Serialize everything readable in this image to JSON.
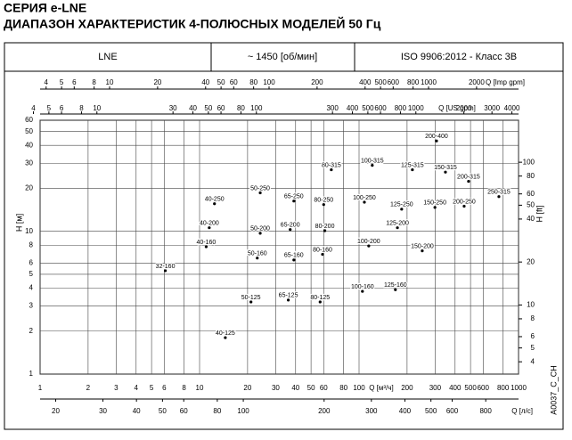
{
  "header": {
    "series": "СЕРИЯ e-LNE",
    "title": "ДИАПАЗОН ХАРАКТЕРИСТИК 4-ПОЛЮСНЫХ МОДЕЛЕЙ 50 Гц",
    "cells": [
      "LNE",
      "~ 1450 [об/мин]",
      "ISO 9906:2012 - Класс 3В"
    ]
  },
  "chart_data": {
    "type": "pump-range",
    "xlabel": "Q [м³/ч]",
    "ylabel": "H [м]",
    "y2label": "H [ft]",
    "code": "A0037_C_CH",
    "log_scale": true,
    "grid": true,
    "xlim": [
      1,
      1000
    ],
    "xticks": [
      1,
      2,
      3,
      4,
      5,
      6,
      8,
      10,
      20,
      30,
      40,
      50,
      60,
      80,
      100,
      200,
      300,
      400,
      500,
      600,
      800,
      1000
    ],
    "ylim": [
      1,
      60
    ],
    "yticks": [
      1,
      2,
      3,
      4,
      5,
      6,
      8,
      10,
      20,
      30,
      40,
      50,
      60
    ],
    "y2lim": [
      3.28,
      196.85
    ],
    "y2ticks": [
      4,
      5,
      6,
      8,
      10,
      20,
      40,
      50,
      60,
      80,
      100
    ],
    "extra_x_axes": [
      {
        "label": "Q [Imp gpm]",
        "position": "top",
        "lim": [
          3.666,
          3666
        ],
        "ticks": [
          4,
          5,
          6,
          8,
          10,
          20,
          40,
          50,
          60,
          80,
          100,
          200,
          400,
          500,
          600,
          800,
          1000,
          2000
        ]
      },
      {
        "label": "Q [US gpm]",
        "position": "top",
        "lim": [
          4.403,
          4403
        ],
        "ticks": [
          4,
          5,
          6,
          8,
          10,
          30,
          40,
          50,
          60,
          80,
          100,
          300,
          400,
          500,
          600,
          800,
          1000,
          2000,
          3000,
          4000
        ]
      },
      {
        "label": "Q [л/с]",
        "position": "bottom",
        "lim": [
          17.5,
          1060
        ],
        "ticks": [
          20,
          30,
          40,
          50,
          60,
          80,
          100,
          200,
          300,
          400,
          500,
          600,
          800
        ]
      }
    ],
    "regions": [
      {
        "name": "200-400",
        "x": 306,
        "y": 43
      },
      {
        "name": "100-315",
        "x": 121,
        "y": 29
      },
      {
        "name": "80-315",
        "x": 67,
        "y": 27
      },
      {
        "name": "125-315",
        "x": 216,
        "y": 27
      },
      {
        "name": "150-315",
        "x": 348,
        "y": 26
      },
      {
        "name": "200-315",
        "x": 486,
        "y": 22.4
      },
      {
        "name": "250-315",
        "x": 753,
        "y": 17.5
      },
      {
        "name": "50-250",
        "x": 24,
        "y": 18.6
      },
      {
        "name": "65-250",
        "x": 39,
        "y": 16.3
      },
      {
        "name": "80-250",
        "x": 60,
        "y": 15.4
      },
      {
        "name": "100-250",
        "x": 108,
        "y": 16
      },
      {
        "name": "125-250",
        "x": 185,
        "y": 14.3
      },
      {
        "name": "150-250",
        "x": 299,
        "y": 14.7
      },
      {
        "name": "200-250",
        "x": 456,
        "y": 15
      },
      {
        "name": "40-250",
        "x": 12.4,
        "y": 15.6
      },
      {
        "name": "40-200",
        "x": 11.5,
        "y": 10.6
      },
      {
        "name": "50-200",
        "x": 24,
        "y": 9.7
      },
      {
        "name": "65-200",
        "x": 37,
        "y": 10.3
      },
      {
        "name": "80-200",
        "x": 61,
        "y": 10.1
      },
      {
        "name": "125-200",
        "x": 174,
        "y": 10.6
      },
      {
        "name": "100-200",
        "x": 115,
        "y": 7.9
      },
      {
        "name": "150-200",
        "x": 249,
        "y": 7.3
      },
      {
        "name": "40-160",
        "x": 11,
        "y": 7.8
      },
      {
        "name": "50-160",
        "x": 23,
        "y": 6.5
      },
      {
        "name": "65-160",
        "x": 39,
        "y": 6.3
      },
      {
        "name": "80-160",
        "x": 59,
        "y": 6.9
      },
      {
        "name": "32-160",
        "x": 6.1,
        "y": 5.3
      },
      {
        "name": "100-160",
        "x": 105,
        "y": 3.8
      },
      {
        "name": "125-160",
        "x": 169,
        "y": 3.9
      },
      {
        "name": "65-125",
        "x": 36,
        "y": 3.3
      },
      {
        "name": "80-125",
        "x": 57,
        "y": 3.2
      },
      {
        "name": "50-125",
        "x": 21,
        "y": 3.2
      },
      {
        "name": "40-125",
        "x": 14.5,
        "y": 1.8
      }
    ]
  }
}
